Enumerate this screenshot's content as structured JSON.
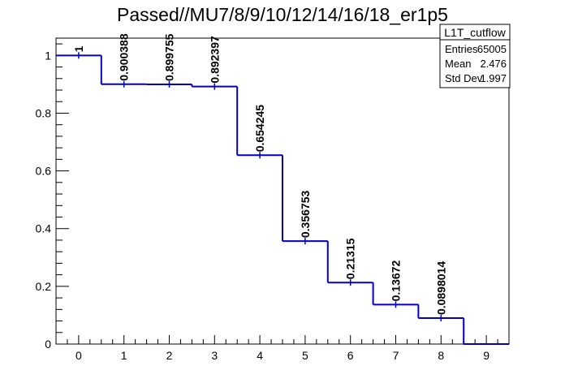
{
  "chart_data": {
    "type": "step-histogram",
    "title": "Passed//MU7/8/9/10/12/14/16/18_er1p5",
    "xlim": [
      -0.5,
      9.5
    ],
    "ylim": [
      0,
      1.06
    ],
    "x_ticks": [
      0,
      1,
      2,
      3,
      4,
      5,
      6,
      7,
      8,
      9
    ],
    "y_ticks": [
      0,
      0.2,
      0.4,
      0.6,
      0.8,
      1
    ],
    "y_tick_labels": [
      "0",
      "0.2",
      "0.4",
      "0.6",
      "0.8",
      "1"
    ],
    "bins": [
      0,
      1,
      2,
      3,
      4,
      5,
      6,
      7,
      8,
      9
    ],
    "values": [
      1,
      0.900388,
      0.899755,
      0.892397,
      0.654245,
      0.356753,
      0.21315,
      0.13672,
      0.0898014,
      0
    ],
    "data_labels": [
      "1",
      "0.900388",
      "0.899755",
      "0.892397",
      "0.654245",
      "0.356753",
      "0.21315",
      "0.13672",
      "0.0898014",
      ""
    ],
    "line_color": "#0000cc",
    "grid": false
  },
  "stats_box": {
    "name": "L1T_cutflow",
    "rows": [
      {
        "label": "Entries",
        "value": "65005"
      },
      {
        "label": "Mean",
        "value": "2.476"
      },
      {
        "label": "Std Dev",
        "value": "1.997"
      }
    ]
  }
}
